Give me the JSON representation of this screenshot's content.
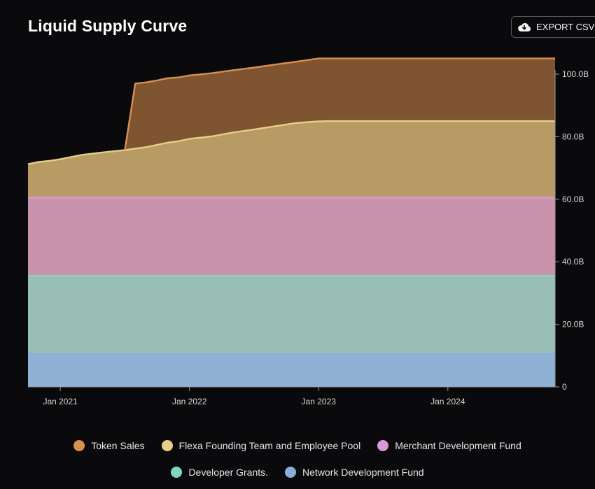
{
  "header": {
    "title": "Liquid Supply Curve",
    "export_label": "EXPORT CSV",
    "export_icon": "cloud-download-icon"
  },
  "chart_data": {
    "type": "area",
    "stacked": true,
    "title": "Liquid Supply Curve",
    "xlabel": "",
    "ylabel": "",
    "x": [
      2020.75,
      2020.83,
      2020.92,
      2021.0,
      2021.08,
      2021.17,
      2021.33,
      2021.5,
      2021.58,
      2021.67,
      2021.75,
      2021.83,
      2021.92,
      2022.0,
      2022.17,
      2022.33,
      2022.5,
      2022.67,
      2022.83,
      2023.0,
      2023.08,
      2023.5,
      2024.0,
      2024.5,
      2024.83
    ],
    "x_ticks": [
      2021,
      2022,
      2023,
      2024
    ],
    "x_tick_labels": [
      "Jan 2021",
      "Jan 2022",
      "Jan 2023",
      "Jan 2024"
    ],
    "xlim": [
      2020.75,
      2024.83
    ],
    "ylim": [
      0,
      100
    ],
    "y_ticks": [
      0,
      20,
      40,
      60,
      80,
      100
    ],
    "y_tick_labels": [
      "0",
      "20.0B",
      "40.0B",
      "60.0B",
      "80.0B",
      "100.0B"
    ],
    "grid": false,
    "legend_position": "bottom",
    "series": [
      {
        "name": "Network Development Fund",
        "color": "#8fb2d4",
        "line_color": "#8aaedb",
        "values": [
          10.5,
          10.5,
          10.5,
          10.5,
          10.5,
          10.5,
          10.5,
          10.5,
          10.5,
          10.5,
          10.5,
          10.5,
          10.5,
          10.5,
          10.5,
          10.5,
          10.5,
          10.5,
          10.5,
          10.5,
          10.5,
          10.5,
          10.5,
          10.5,
          10.5
        ]
      },
      {
        "name": "Developer Grants.",
        "color": "#9abfb4",
        "line_color": "#7fd8bb",
        "values": [
          25,
          25,
          25,
          25,
          25,
          25,
          25,
          25,
          25,
          25,
          25,
          25,
          25,
          25,
          25,
          25,
          25,
          25,
          25,
          25,
          25,
          25,
          25,
          25,
          25
        ]
      },
      {
        "name": "Merchant Development Fund",
        "color": "#c994ab",
        "line_color": "#d69ad6",
        "values": [
          25,
          25,
          25,
          25,
          25,
          25,
          25,
          25,
          25,
          25,
          25,
          25,
          25,
          25,
          25,
          25,
          25,
          25,
          25,
          25,
          25,
          25,
          25,
          25,
          25
        ]
      },
      {
        "name": "Flexa Founding Team and Employee Pool",
        "color": "#b89a64",
        "line_color": "#e6cf86",
        "values": [
          10.7,
          11.4,
          11.8,
          12.3,
          13.0,
          13.7,
          14.5,
          15.2,
          15.7,
          16.2,
          16.9,
          17.6,
          18.1,
          18.8,
          19.6,
          20.8,
          21.8,
          22.9,
          23.9,
          24.4,
          24.5,
          24.5,
          24.5,
          24.5,
          24.5
        ]
      },
      {
        "name": "Token Sales",
        "color": "#7f5431",
        "line_color": "#d9904f",
        "values": [
          0,
          0,
          0,
          0,
          0,
          0,
          0,
          0,
          20.8,
          20.7,
          20.6,
          20.6,
          20.4,
          20.3,
          20.2,
          19.9,
          19.8,
          19.7,
          19.6,
          20.1,
          20.0,
          20.0,
          20.0,
          20.0,
          20.0
        ]
      }
    ]
  },
  "legend": {
    "rows": [
      [
        {
          "label": "Token Sales",
          "color": "#d9904f"
        },
        {
          "label": "Flexa Founding Team and Employee Pool",
          "color": "#e6cf86"
        },
        {
          "label": "Merchant Development Fund",
          "color": "#d69ad6"
        }
      ],
      [
        {
          "label": "Developer Grants.",
          "color": "#7fd8bb"
        },
        {
          "label": "Network Development Fund",
          "color": "#8aaedb"
        }
      ]
    ]
  }
}
